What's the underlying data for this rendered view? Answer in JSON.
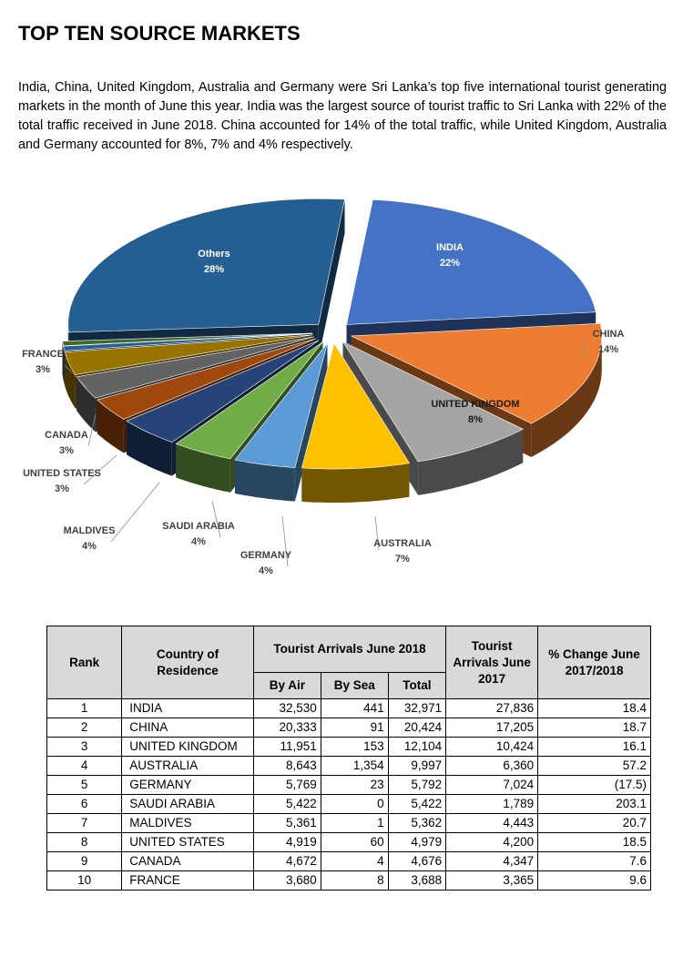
{
  "title": "TOP TEN SOURCE MARKETS",
  "intro": "India, China, United Kingdom, Australia and Germany were Sri Lanka’s top five international tourist generating markets in the month of June this year. India was the largest source of tourist traffic to Sri Lanka with 22% of the total traffic received in June 2018. China accounted for 14% of the total traffic, while United Kingdom, Australia and Germany accounted for 8%, 7% and 4% respectively.",
  "chart_data": {
    "type": "pie",
    "style": "3d-exploded",
    "legend": "labels beside slices",
    "slices": [
      {
        "label": "INDIA",
        "value": 22,
        "value_label": "22%",
        "color": "#4472C4"
      },
      {
        "label": "CHINA",
        "value": 14,
        "value_label": "14%",
        "color": "#ED7D31"
      },
      {
        "label": "UNITED KINGDOM",
        "value": 8,
        "value_label": "8%",
        "color": "#A5A5A5"
      },
      {
        "label": "AUSTRALIA",
        "value": 7,
        "value_label": "7%",
        "color": "#FFC000"
      },
      {
        "label": "GERMANY",
        "value": 4,
        "value_label": "4%",
        "color": "#5B9BD5"
      },
      {
        "label": "SAUDI ARABIA",
        "value": 4,
        "value_label": "4%",
        "color": "#70AD47"
      },
      {
        "label": "MALDIVES",
        "value": 4,
        "value_label": "4%",
        "color": "#264478"
      },
      {
        "label": "UNITED STATES",
        "value": 3,
        "value_label": "3%",
        "color": "#9E480E"
      },
      {
        "label": "CANADA",
        "value": 3,
        "value_label": "3%",
        "color": "#636363"
      },
      {
        "label": "FRANCE",
        "value": 3,
        "value_label": "3%",
        "color": "#997300"
      },
      {
        "label": "",
        "value": 0.6,
        "value_label": "",
        "color": "#255E91"
      },
      {
        "label": "",
        "value": 0.6,
        "value_label": "",
        "color": "#43682B"
      },
      {
        "label": "Others",
        "value": 28,
        "value_label": "28%",
        "color": "#255E91"
      }
    ]
  },
  "table": {
    "headers": {
      "rank": "Rank",
      "country": "Country of Residence",
      "arrivals_2018": "Tourist Arrivals June 2018",
      "by_air": "By Air",
      "by_sea": "By Sea",
      "total": "Total",
      "arrivals_2017": "Tourist Arrivals June 2017",
      "change": "% Change June 2017/2018"
    },
    "rows": [
      {
        "rank": "1",
        "country": "INDIA",
        "air": "32,530",
        "sea": "441",
        "total": "32,971",
        "y2017": "27,836",
        "change": "18.4"
      },
      {
        "rank": "2",
        "country": "CHINA",
        "air": "20,333",
        "sea": "91",
        "total": "20,424",
        "y2017": "17,205",
        "change": "18.7"
      },
      {
        "rank": "3",
        "country": "UNITED KINGDOM",
        "air": "11,951",
        "sea": "153",
        "total": "12,104",
        "y2017": "10,424",
        "change": "16.1"
      },
      {
        "rank": "4",
        "country": "AUSTRALIA",
        "air": "8,643",
        "sea": "1,354",
        "total": "9,997",
        "y2017": "6,360",
        "change": "57.2"
      },
      {
        "rank": "5",
        "country": "GERMANY",
        "air": "5,769",
        "sea": "23",
        "total": "5,792",
        "y2017": "7,024",
        "change": "(17.5)"
      },
      {
        "rank": "6",
        "country": "SAUDI ARABIA",
        "air": "5,422",
        "sea": "0",
        "total": "5,422",
        "y2017": "1,789",
        "change": "203.1"
      },
      {
        "rank": "7",
        "country": "MALDIVES",
        "air": "5,361",
        "sea": "1",
        "total": "5,362",
        "y2017": "4,443",
        "change": "20.7"
      },
      {
        "rank": "8",
        "country": "UNITED STATES",
        "air": "4,919",
        "sea": "60",
        "total": "4,979",
        "y2017": "4,200",
        "change": "18.5"
      },
      {
        "rank": "9",
        "country": "CANADA",
        "air": "4,672",
        "sea": "4",
        "total": "4,676",
        "y2017": "4,347",
        "change": "7.6"
      },
      {
        "rank": "10",
        "country": "FRANCE",
        "air": "3,680",
        "sea": "8",
        "total": "3,688",
        "y2017": "3,365",
        "change": "9.6"
      }
    ]
  }
}
